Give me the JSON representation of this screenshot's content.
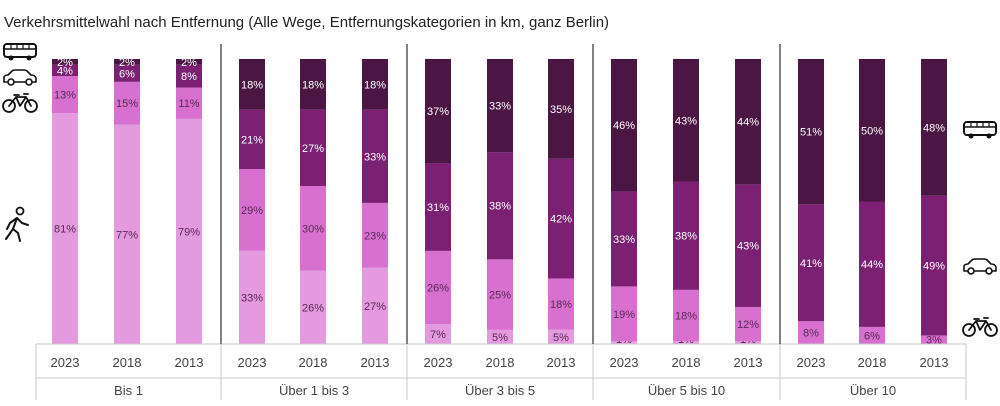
{
  "title": "Verkehrsmittelwahl nach Entfernung (Alle Wege, Entfernungskategorien in km, ganz Berlin)",
  "colors": {
    "walk": "#e39ade",
    "bike": "#d870cf",
    "car": "#7b2073",
    "pt": "#4b1644",
    "label_dark_text": "#5a2a55",
    "label_light_text": "#ffffff",
    "axis_line": "#c9c9c9",
    "divider": "#404040"
  },
  "legend_icons": {
    "left": [
      "bus-icon",
      "car-icon",
      "bike-icon",
      "walk-icon"
    ],
    "right": [
      "bus-icon",
      "car-icon",
      "bike-icon"
    ]
  },
  "chart_data": {
    "type": "bar",
    "stacked": true,
    "percent_scale": true,
    "ylim": [
      0,
      100
    ],
    "title": "Verkehrsmittelwahl nach Entfernung (Alle Wege, Entfernungskategorien in km, ganz Berlin)",
    "series_order": [
      "walk",
      "bike",
      "car",
      "pt"
    ],
    "groups": [
      {
        "label": "Bis 1",
        "bars": [
          {
            "year": "2023",
            "values": {
              "walk": 81,
              "bike": 13,
              "car": 4,
              "pt": 2
            },
            "labels": {
              "walk": "81%",
              "bike": "13%",
              "car": "4%",
              "pt": "2%"
            }
          },
          {
            "year": "2018",
            "values": {
              "walk": 77,
              "bike": 15,
              "car": 6,
              "pt": 2
            },
            "labels": {
              "walk": "77%",
              "bike": "15%",
              "car": "6%",
              "pt": "2%"
            }
          },
          {
            "year": "2013",
            "values": {
              "walk": 79,
              "bike": 11,
              "car": 8,
              "pt": 2
            },
            "labels": {
              "walk": "79%",
              "bike": "11%",
              "car": "8%",
              "pt": "2%"
            }
          }
        ]
      },
      {
        "label": "Über 1 bis 3",
        "bars": [
          {
            "year": "2023",
            "values": {
              "walk": 33,
              "bike": 29,
              "car": 21,
              "pt": 18
            },
            "labels": {
              "walk": "33%",
              "bike": "29%",
              "car": "21%",
              "pt": "18%"
            }
          },
          {
            "year": "2018",
            "values": {
              "walk": 26,
              "bike": 30,
              "car": 27,
              "pt": 18
            },
            "labels": {
              "walk": "26%",
              "bike": "30%",
              "car": "27%",
              "pt": "18%"
            }
          },
          {
            "year": "2013",
            "values": {
              "walk": 27,
              "bike": 23,
              "car": 33,
              "pt": 18
            },
            "labels": {
              "walk": "27%",
              "bike": "23%",
              "car": "33%",
              "pt": "18%"
            }
          }
        ]
      },
      {
        "label": "Über 3 bis 5",
        "bars": [
          {
            "year": "2023",
            "values": {
              "walk": 7,
              "bike": 26,
              "car": 31,
              "pt": 37
            },
            "labels": {
              "walk": "7%",
              "bike": "26%",
              "car": "31%",
              "pt": "37%"
            }
          },
          {
            "year": "2018",
            "values": {
              "walk": 5,
              "bike": 25,
              "car": 38,
              "pt": 33
            },
            "labels": {
              "walk": "5%",
              "bike": "25%",
              "car": "38%",
              "pt": "33%"
            }
          },
          {
            "year": "2013",
            "values": {
              "walk": 5,
              "bike": 18,
              "car": 42,
              "pt": 35
            },
            "labels": {
              "walk": "5%",
              "bike": "18%",
              "car": "42%",
              "pt": "35%"
            }
          }
        ]
      },
      {
        "label": "Über 5 bis 10",
        "bars": [
          {
            "year": "2023",
            "values": {
              "walk": 1,
              "bike": 19,
              "car": 33,
              "pt": 46
            },
            "labels": {
              "walk": "1%",
              "bike": "19%",
              "car": "33%",
              "pt": "46%"
            }
          },
          {
            "year": "2018",
            "values": {
              "walk": 1,
              "bike": 18,
              "car": 38,
              "pt": 43
            },
            "labels": {
              "walk": "1%",
              "bike": "18%",
              "car": "38%",
              "pt": "43%"
            }
          },
          {
            "year": "2013",
            "values": {
              "walk": 1,
              "bike": 12,
              "car": 43,
              "pt": 44
            },
            "labels": {
              "walk": "1%",
              "bike": "12%",
              "car": "43%",
              "pt": "44%"
            }
          }
        ]
      },
      {
        "label": "Über 10",
        "bars": [
          {
            "year": "2023",
            "values": {
              "walk": 0,
              "bike": 8,
              "car": 41,
              "pt": 51
            },
            "labels": {
              "walk": "",
              "bike": "8%",
              "car": "41%",
              "pt": "51%"
            }
          },
          {
            "year": "2018",
            "values": {
              "walk": 0,
              "bike": 6,
              "car": 44,
              "pt": 50
            },
            "labels": {
              "walk": "",
              "bike": "6%",
              "car": "44%",
              "pt": "50%"
            }
          },
          {
            "year": "2013",
            "values": {
              "walk": 0,
              "bike": 3,
              "car": 49,
              "pt": 48
            },
            "labels": {
              "walk": "",
              "bike": "3%",
              "car": "49%",
              "pt": "48%"
            }
          }
        ]
      }
    ]
  }
}
